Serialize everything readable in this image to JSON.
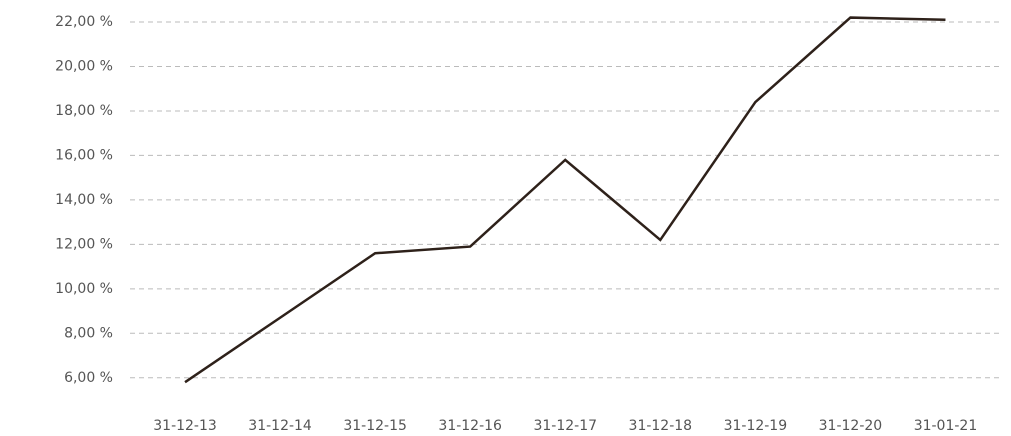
{
  "chart_data": {
    "type": "line",
    "categories": [
      "31-12-13",
      "31-12-14",
      "31-12-15",
      "31-12-16",
      "31-12-17",
      "31-12-18",
      "31-12-19",
      "31-12-20",
      "31-01-21"
    ],
    "series": [
      {
        "color": "#2e211a",
        "values": [
          5.8,
          8.7,
          11.6,
          11.9,
          15.8,
          12.2,
          18.4,
          22.2,
          22.1
        ]
      }
    ],
    "ylim": [
      5,
      22.5
    ],
    "yticks": [
      {
        "value": 6,
        "label": "6,00 %"
      },
      {
        "value": 8,
        "label": "8,00 %"
      },
      {
        "value": 10,
        "label": "10,00 %"
      },
      {
        "value": 12,
        "label": "12,00 %"
      },
      {
        "value": 14,
        "label": "14,00 %"
      },
      {
        "value": 16,
        "label": "16,00 %"
      },
      {
        "value": 18,
        "label": "18,00 %"
      },
      {
        "value": 20,
        "label": "20,00 %"
      },
      {
        "value": 22,
        "label": "22,00 %"
      }
    ],
    "grid": true
  }
}
